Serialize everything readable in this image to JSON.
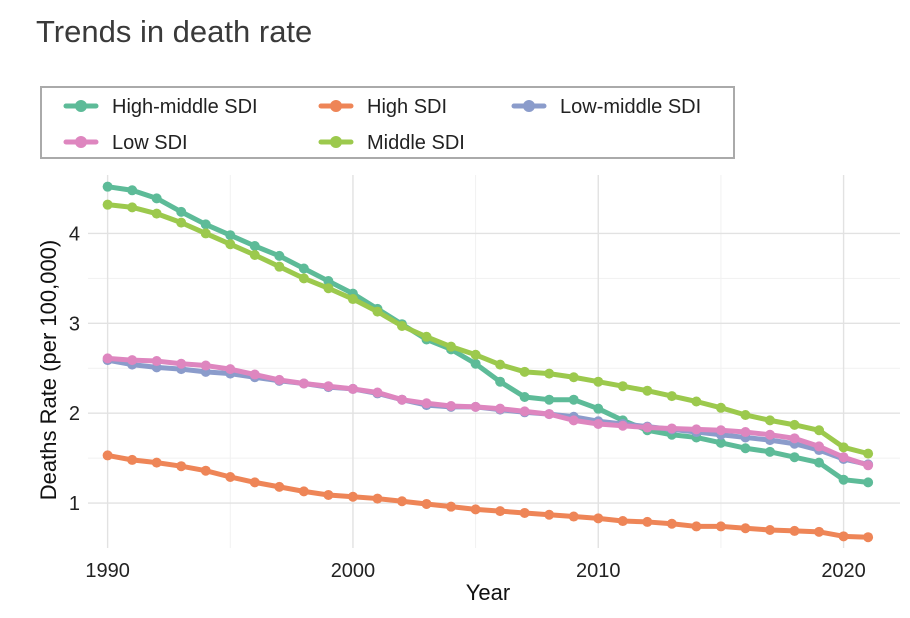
{
  "chart_data": {
    "type": "line",
    "title": "Trends in death rate",
    "xlabel": "Year",
    "ylabel": "Deaths Rate (per 100,000)",
    "xlim": [
      1989.2,
      2022.3
    ],
    "ylim": [
      0.5,
      4.65
    ],
    "xticks": [
      1990,
      2000,
      2010,
      2020
    ],
    "yticks": [
      1,
      2,
      3,
      4
    ],
    "grid": true,
    "legend_position": "top",
    "x": [
      1990,
      1991,
      1992,
      1993,
      1994,
      1995,
      1996,
      1997,
      1998,
      1999,
      2000,
      2001,
      2002,
      2003,
      2004,
      2005,
      2006,
      2007,
      2008,
      2009,
      2010,
      2011,
      2012,
      2013,
      2014,
      2015,
      2016,
      2017,
      2018,
      2019,
      2020,
      2021
    ],
    "series": [
      {
        "name": "High-middle SDI",
        "color": "#5DBB98",
        "values": [
          4.52,
          4.48,
          4.39,
          4.24,
          4.1,
          3.98,
          3.86,
          3.75,
          3.61,
          3.47,
          3.33,
          3.16,
          2.99,
          2.82,
          2.71,
          2.55,
          2.35,
          2.18,
          2.15,
          2.15,
          2.05,
          1.92,
          1.81,
          1.76,
          1.73,
          1.67,
          1.61,
          1.57,
          1.51,
          1.45,
          1.26,
          1.23
        ]
      },
      {
        "name": "High SDI",
        "color": "#EE8557",
        "values": [
          1.53,
          1.48,
          1.45,
          1.41,
          1.36,
          1.29,
          1.23,
          1.18,
          1.13,
          1.09,
          1.07,
          1.05,
          1.02,
          0.99,
          0.96,
          0.93,
          0.91,
          0.89,
          0.87,
          0.85,
          0.83,
          0.8,
          0.79,
          0.77,
          0.74,
          0.74,
          0.72,
          0.7,
          0.69,
          0.68,
          0.63,
          0.62
        ]
      },
      {
        "name": "Low-middle SDI",
        "color": "#8B9CCB",
        "values": [
          2.59,
          2.54,
          2.51,
          2.49,
          2.46,
          2.44,
          2.4,
          2.36,
          2.33,
          2.29,
          2.27,
          2.22,
          2.15,
          2.09,
          2.07,
          2.07,
          2.04,
          2.01,
          1.99,
          1.96,
          1.91,
          1.88,
          1.85,
          1.82,
          1.79,
          1.76,
          1.73,
          1.7,
          1.66,
          1.59,
          1.49,
          1.43
        ]
      },
      {
        "name": "Low SDI",
        "color": "#DE86BF",
        "values": [
          2.61,
          2.59,
          2.58,
          2.55,
          2.53,
          2.49,
          2.43,
          2.37,
          2.33,
          2.3,
          2.27,
          2.23,
          2.15,
          2.11,
          2.08,
          2.07,
          2.05,
          2.02,
          1.99,
          1.92,
          1.88,
          1.86,
          1.84,
          1.83,
          1.82,
          1.81,
          1.79,
          1.76,
          1.72,
          1.63,
          1.51,
          1.42
        ]
      },
      {
        "name": "Middle SDI",
        "color": "#9CC94D",
        "values": [
          4.32,
          4.29,
          4.22,
          4.12,
          4.0,
          3.88,
          3.76,
          3.63,
          3.5,
          3.39,
          3.27,
          3.13,
          2.97,
          2.85,
          2.74,
          2.65,
          2.54,
          2.46,
          2.44,
          2.4,
          2.35,
          2.3,
          2.25,
          2.19,
          2.13,
          2.06,
          1.98,
          1.92,
          1.87,
          1.81,
          1.62,
          1.55
        ]
      }
    ]
  }
}
